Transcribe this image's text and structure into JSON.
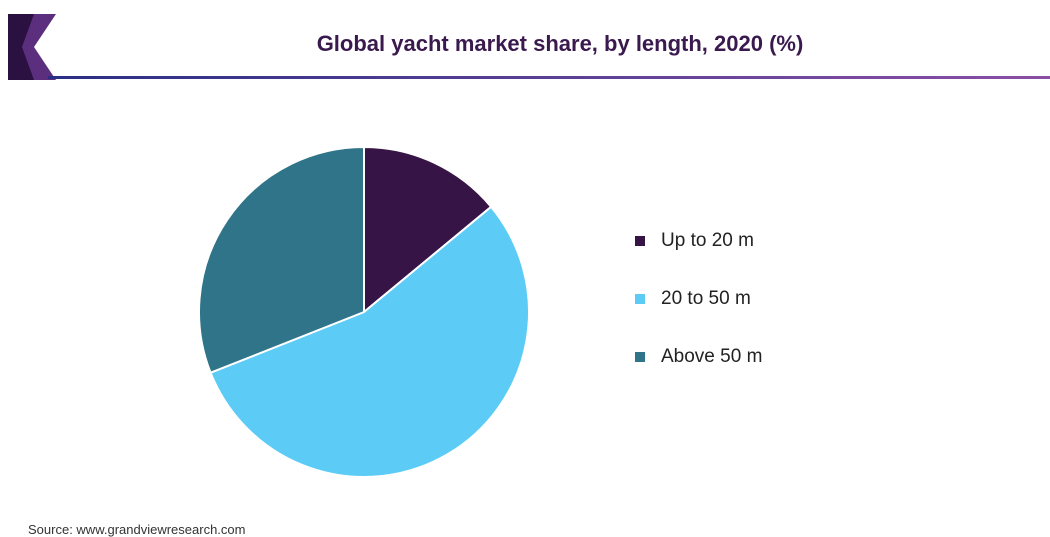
{
  "header": {
    "title": "Global yacht market share, by length, 2020 (%)"
  },
  "colors": {
    "brand_dark": "#3a1a4e",
    "brand_purple": "#6a3f8f",
    "rule_start": "#2a2f86",
    "rule_end": "#8a4fa5"
  },
  "chart_data": {
    "type": "pie",
    "categories": [
      "Up to 20 m",
      "20 to 50 m",
      "Above 50 m"
    ],
    "values": [
      14,
      55,
      31
    ],
    "unit": "%",
    "colors": [
      "#361446",
      "#5ccbf5",
      "#2f7488"
    ],
    "start_angle_deg": 0,
    "direction": "clockwise",
    "legend_position": "right"
  },
  "footer": {
    "source": "Source: www.grandviewresearch.com"
  }
}
